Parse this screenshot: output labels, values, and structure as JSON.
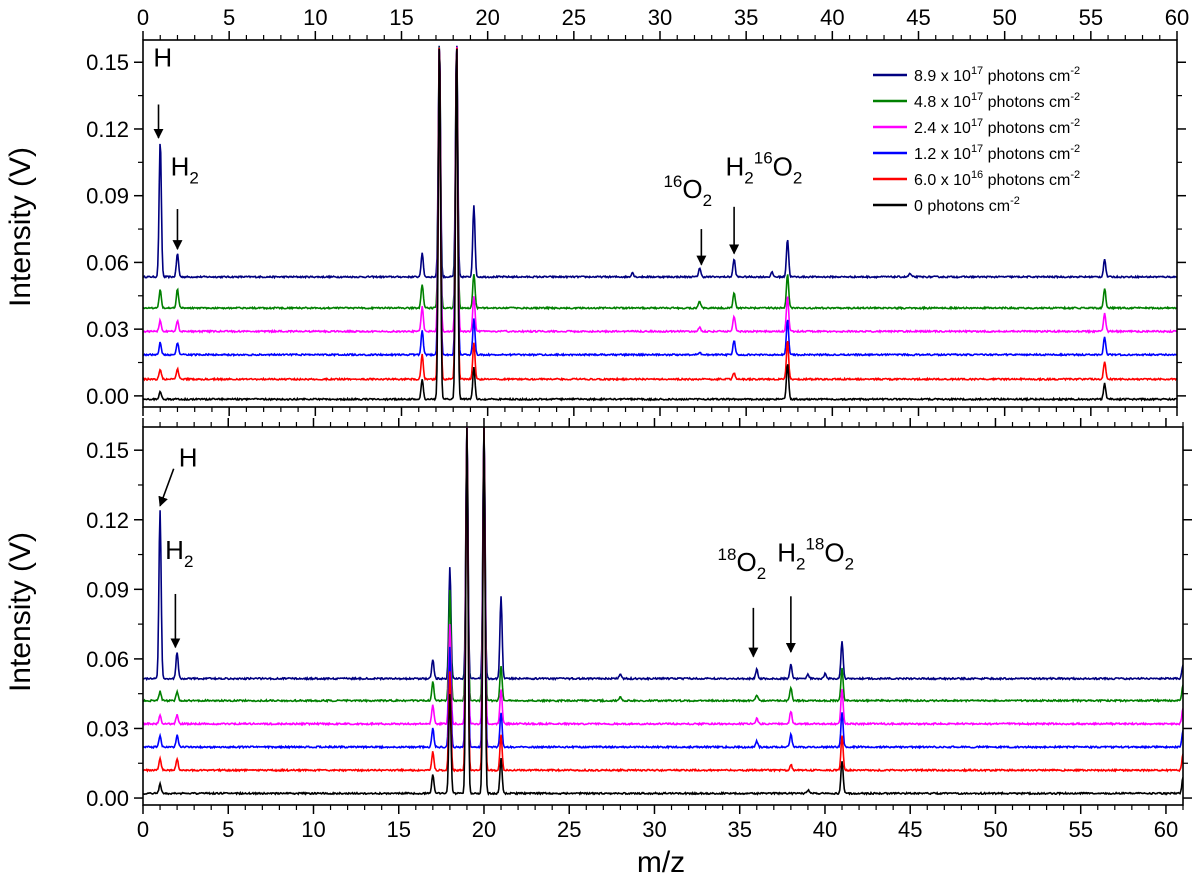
{
  "figure": {
    "xlabel": "m/z",
    "ylabel_top": "Intensity (V)",
    "ylabel_bottom": "Intensity (V)"
  },
  "legend": [
    {
      "label": "8.9 x 10",
      "exp": "17",
      "unit": " photons cm",
      "unit_exp": "-2",
      "color": "#000080"
    },
    {
      "label": "4.8 x 10",
      "exp": "17",
      "unit": " photons cm",
      "unit_exp": "-2",
      "color": "#008000"
    },
    {
      "label": "2.4 x 10",
      "exp": "17",
      "unit": " photons cm",
      "unit_exp": "-2",
      "color": "#ff00ff"
    },
    {
      "label": "1.2 x 10",
      "exp": "17",
      "unit": " photons cm",
      "unit_exp": "-2",
      "color": "#0000ff"
    },
    {
      "label": "6.0 x 10",
      "exp": "16",
      "unit": " photons cm",
      "unit_exp": "-2",
      "color": "#ff0000"
    },
    {
      "label": "0  ",
      "exp": "",
      "unit": "photons cm",
      "unit_exp": "-2",
      "color": "#000000"
    }
  ],
  "chart_data": [
    {
      "type": "line",
      "panel": "top",
      "xlabel": "m/z",
      "ylabel": "Intensity (V)",
      "xlim": [
        0,
        60
      ],
      "ylim": [
        -0.005,
        0.16
      ],
      "x_ticks": [
        0,
        5,
        10,
        15,
        20,
        25,
        30,
        35,
        40,
        45,
        50,
        55,
        60
      ],
      "y_ticks": [
        0.0,
        0.03,
        0.06,
        0.09,
        0.12,
        0.15
      ],
      "y_tick_labels": [
        "0.00",
        "0.03",
        "0.06",
        "0.09",
        "0.12",
        "0.15"
      ],
      "grid": false,
      "legend_position": "top-right",
      "series": [
        {
          "name": "8.9 x 10^17 photons cm^-2",
          "color": "#000080",
          "baseline": 0.0535,
          "peaks": [
            [
              1,
              0.115
            ],
            [
              2,
              0.064
            ],
            [
              16.2,
              0.064
            ],
            [
              17.2,
              0.16
            ],
            [
              18.2,
              0.16
            ],
            [
              19.2,
              0.086
            ],
            [
              28.4,
              0.0555
            ],
            [
              32.3,
              0.0575
            ],
            [
              34.3,
              0.0615
            ],
            [
              36.5,
              0.0555
            ],
            [
              37.4,
              0.0705
            ],
            [
              44.5,
              0.055
            ],
            [
              55.8,
              0.0615
            ]
          ]
        },
        {
          "name": "4.8 x 10^17 photons cm^-2",
          "color": "#008000",
          "baseline": 0.0395,
          "peaks": [
            [
              1,
              0.048
            ],
            [
              2,
              0.048
            ],
            [
              16.2,
              0.05
            ],
            [
              17.2,
              0.16
            ],
            [
              18.2,
              0.16
            ],
            [
              19.2,
              0.055
            ],
            [
              32.3,
              0.0425
            ],
            [
              34.3,
              0.0465
            ],
            [
              37.4,
              0.055
            ],
            [
              55.8,
              0.0485
            ]
          ]
        },
        {
          "name": "2.4 x 10^17 photons cm^-2",
          "color": "#ff00ff",
          "baseline": 0.029,
          "peaks": [
            [
              1,
              0.034
            ],
            [
              2,
              0.034
            ],
            [
              16.2,
              0.04
            ],
            [
              17.2,
              0.16
            ],
            [
              18.2,
              0.16
            ],
            [
              19.2,
              0.045
            ],
            [
              32.3,
              0.031
            ],
            [
              34.3,
              0.036
            ],
            [
              37.4,
              0.045
            ],
            [
              55.8,
              0.037
            ]
          ]
        },
        {
          "name": "1.2 x 10^17 photons cm^-2",
          "color": "#0000ff",
          "baseline": 0.0185,
          "peaks": [
            [
              1,
              0.024
            ],
            [
              2,
              0.024
            ],
            [
              16.2,
              0.0295
            ],
            [
              17.2,
              0.16
            ],
            [
              18.2,
              0.16
            ],
            [
              19.2,
              0.035
            ],
            [
              32.3,
              0.0195
            ],
            [
              34.3,
              0.025
            ],
            [
              37.4,
              0.0345
            ],
            [
              55.8,
              0.0265
            ]
          ]
        },
        {
          "name": "6.0 x 10^16 photons cm^-2",
          "color": "#ff0000",
          "baseline": 0.0075,
          "peaks": [
            [
              1,
              0.012
            ],
            [
              2,
              0.012
            ],
            [
              16.2,
              0.0185
            ],
            [
              17.2,
              0.16
            ],
            [
              18.2,
              0.16
            ],
            [
              19.2,
              0.024
            ],
            [
              34.3,
              0.0105
            ],
            [
              37.4,
              0.025
            ],
            [
              55.8,
              0.0155
            ]
          ]
        },
        {
          "name": "0  photons cm^-2",
          "color": "#000000",
          "baseline": -0.0015,
          "peaks": [
            [
              1,
              0.002
            ],
            [
              16.2,
              0.0075
            ],
            [
              17.2,
              0.16
            ],
            [
              18.2,
              0.16
            ],
            [
              19.2,
              0.013
            ],
            [
              37.4,
              0.0145
            ],
            [
              55.8,
              0.0055
            ]
          ]
        }
      ],
      "annotations": [
        {
          "text": "H",
          "sub": "",
          "sup_prefix": "",
          "x": 0.6,
          "y": 0.148,
          "arrow_from": [
            0.9,
            0.131
          ],
          "arrow_to": [
            0.9,
            0.116
          ]
        },
        {
          "text": "H",
          "sub": "2",
          "sup_prefix": "",
          "x": 1.6,
          "y": 0.099,
          "arrow_from": [
            2.0,
            0.084
          ],
          "arrow_to": [
            2.0,
            0.066
          ]
        },
        {
          "text": "O",
          "sub": "2",
          "sup_prefix": "16",
          "x": 30.2,
          "y": 0.089,
          "arrow_from": [
            32.4,
            0.075
          ],
          "arrow_to": [
            32.4,
            0.059
          ]
        },
        {
          "text": "H",
          "sub": "2",
          "sup_prefix": "",
          "mid_sup": "16",
          "mid": "O",
          "mid_sub": "2",
          "x": 33.8,
          "y": 0.099,
          "arrow_from": [
            34.3,
            0.085
          ],
          "arrow_to": [
            34.3,
            0.064
          ]
        }
      ]
    },
    {
      "type": "line",
      "panel": "bottom",
      "xlabel": "m/z",
      "ylabel": "Intensity (V)",
      "xlim": [
        0,
        61
      ],
      "ylim": [
        -0.003,
        0.16
      ],
      "x_ticks": [
        0,
        5,
        10,
        15,
        20,
        25,
        30,
        35,
        40,
        45,
        50,
        55,
        60
      ],
      "y_ticks": [
        0.0,
        0.03,
        0.06,
        0.09,
        0.12,
        0.15
      ],
      "y_tick_labels": [
        "0.00",
        "0.03",
        "0.06",
        "0.09",
        "0.12",
        "0.15"
      ],
      "grid": false,
      "series": [
        {
          "name": "8.9 x 10^17 photons cm^-2",
          "color": "#000080",
          "baseline": 0.0515,
          "peaks": [
            [
              1,
              0.124
            ],
            [
              2,
              0.063
            ],
            [
              17,
              0.06
            ],
            [
              18,
              0.1
            ],
            [
              19,
              0.16
            ],
            [
              20,
              0.16
            ],
            [
              21,
              0.087
            ],
            [
              28,
              0.0535
            ],
            [
              36,
              0.0555
            ],
            [
              38,
              0.0575
            ],
            [
              39,
              0.0535
            ],
            [
              40,
              0.0535
            ],
            [
              41,
              0.0675
            ],
            [
              61,
              0.0575
            ]
          ]
        },
        {
          "name": "4.8 x 10^17 photons cm^-2",
          "color": "#008000",
          "baseline": 0.042,
          "peaks": [
            [
              1,
              0.046
            ],
            [
              2,
              0.046
            ],
            [
              17,
              0.05
            ],
            [
              18,
              0.09
            ],
            [
              19,
              0.16
            ],
            [
              20,
              0.16
            ],
            [
              21,
              0.057
            ],
            [
              28,
              0.0435
            ],
            [
              36,
              0.0445
            ],
            [
              38,
              0.0475
            ],
            [
              41,
              0.056
            ],
            [
              61,
              0.049
            ]
          ]
        },
        {
          "name": "2.4 x 10^17 photons cm^-2",
          "color": "#ff00ff",
          "baseline": 0.032,
          "peaks": [
            [
              1,
              0.036
            ],
            [
              2,
              0.036
            ],
            [
              17,
              0.04
            ],
            [
              18,
              0.075
            ],
            [
              19,
              0.16
            ],
            [
              20,
              0.16
            ],
            [
              21,
              0.047
            ],
            [
              36,
              0.0345
            ],
            [
              38,
              0.0375
            ],
            [
              41,
              0.047
            ],
            [
              61,
              0.039
            ]
          ]
        },
        {
          "name": "1.2 x 10^17 photons cm^-2",
          "color": "#0000ff",
          "baseline": 0.022,
          "peaks": [
            [
              1,
              0.027
            ],
            [
              2,
              0.027
            ],
            [
              17,
              0.03
            ],
            [
              18,
              0.065
            ],
            [
              19,
              0.16
            ],
            [
              20,
              0.16
            ],
            [
              21,
              0.037
            ],
            [
              36,
              0.0245
            ],
            [
              38,
              0.0275
            ],
            [
              41,
              0.037
            ],
            [
              61,
              0.029
            ]
          ]
        },
        {
          "name": "6.0 x 10^16 photons cm^-2",
          "color": "#ff0000",
          "baseline": 0.012,
          "peaks": [
            [
              1,
              0.017
            ],
            [
              2,
              0.017
            ],
            [
              17,
              0.02
            ],
            [
              18,
              0.055
            ],
            [
              19,
              0.16
            ],
            [
              20,
              0.16
            ],
            [
              21,
              0.027
            ],
            [
              38,
              0.0145
            ],
            [
              41,
              0.027
            ],
            [
              61,
              0.019
            ]
          ]
        },
        {
          "name": "0  photons cm^-2",
          "color": "#000000",
          "baseline": 0.002,
          "peaks": [
            [
              1,
              0.006
            ],
            [
              17,
              0.01
            ],
            [
              18,
              0.045
            ],
            [
              19,
              0.16
            ],
            [
              20,
              0.16
            ],
            [
              21,
              0.017
            ],
            [
              39,
              0.0035
            ],
            [
              41,
              0.016
            ],
            [
              61,
              0.009
            ]
          ]
        }
      ],
      "annotations": [
        {
          "text": "H",
          "sub": "",
          "sup_prefix": "",
          "x": 2.1,
          "y": 0.143,
          "arrow_from": [
            1.8,
            0.142
          ],
          "arrow_to": [
            1.0,
            0.126
          ]
        },
        {
          "text": "H",
          "sub": "2",
          "sup_prefix": "",
          "x": 1.3,
          "y": 0.103,
          "arrow_from": [
            1.9,
            0.088
          ],
          "arrow_to": [
            1.9,
            0.065
          ]
        },
        {
          "text": "O",
          "sub": "2",
          "sup_prefix": "18",
          "x": 33.7,
          "y": 0.098,
          "arrow_from": [
            35.8,
            0.082
          ],
          "arrow_to": [
            35.8,
            0.061
          ]
        },
        {
          "text": "H",
          "sub": "2",
          "sup_prefix": "",
          "mid_sup": "18",
          "mid": "O",
          "mid_sub": "2",
          "x": 37.2,
          "y": 0.102,
          "arrow_from": [
            38.0,
            0.087
          ],
          "arrow_to": [
            38.0,
            0.063
          ]
        }
      ]
    }
  ]
}
